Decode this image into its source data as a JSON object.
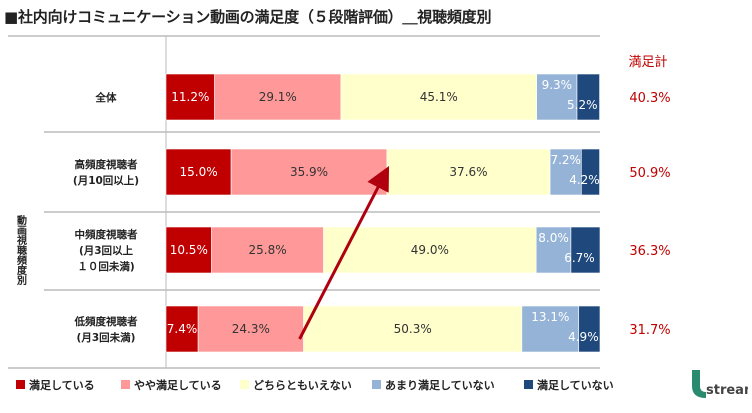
{
  "title": "■社内向けコミュニケーション動画の満足度（５段階評価）＿視聴頻度別",
  "logo_text": "stream",
  "colors": {
    "very_satisfied": "#c00000",
    "somewhat_satisfied": "#ff9999",
    "neutral": "#ffffcc",
    "somewhat_dissatisfied": "#95b3d7",
    "dissatisfied": "#1f497d",
    "total_text": "#c00000",
    "arrow": "#b00010"
  },
  "chart_data": {
    "type": "bar",
    "orientation": "horizontal",
    "stacked": "percent",
    "group_axis_label": "動画視聴頻度別",
    "total_header": "満足計",
    "categories": [
      {
        "name": "全体",
        "sub": []
      },
      {
        "name": "高頻度視聴者",
        "sub": [
          "(月10回以上)"
        ]
      },
      {
        "name": "中頻度視聴者",
        "sub": [
          "(月3回以上",
          "１０回未満)"
        ]
      },
      {
        "name": "低頻度視聴者",
        "sub": [
          "(月3回未満)"
        ]
      }
    ],
    "series": [
      {
        "name": "満足している",
        "values": [
          11.2,
          15.0,
          10.5,
          7.4
        ]
      },
      {
        "name": "やや満足している",
        "values": [
          29.1,
          35.9,
          25.8,
          24.3
        ]
      },
      {
        "name": "どちらともいえない",
        "values": [
          45.1,
          37.6,
          49.0,
          50.3
        ]
      },
      {
        "name": "あまり満足していない",
        "values": [
          9.3,
          7.2,
          8.0,
          13.1
        ]
      },
      {
        "name": "満足していない",
        "values": [
          5.2,
          4.2,
          6.7,
          4.9
        ]
      }
    ],
    "totals": [
      "40.3%",
      "50.9%",
      "36.3%",
      "31.7%"
    ],
    "xlim": [
      0,
      100
    ],
    "legend": "bottom",
    "annotation": "arrow from 低頻度視聴者 to 高頻度視聴者 at the satisfied boundary"
  }
}
